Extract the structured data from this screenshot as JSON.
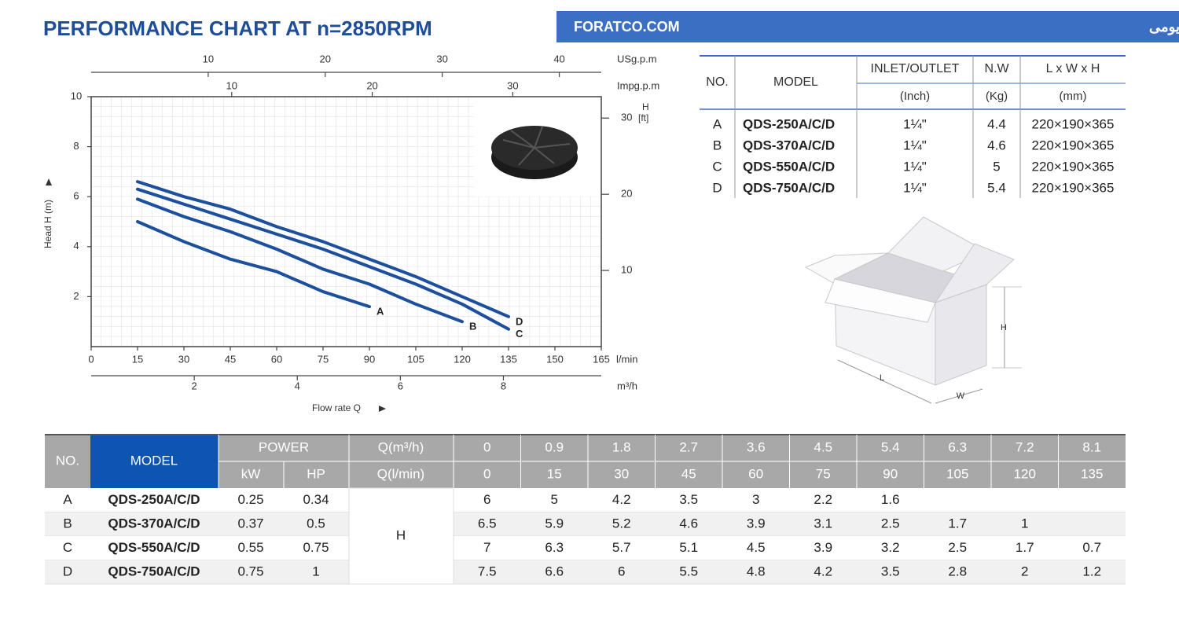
{
  "header": {
    "title": "PERFORMANCE CHART AT n=2850RPM",
    "banner_site": "FORATCO.COM",
    "banner_text": "شرکت فرات واردکننده انحصاری و مرکز پخش انواع پمپ‌های یومی"
  },
  "chart_data": {
    "type": "line",
    "y_label": "Head H (m)",
    "x_label": "Flow rate Q",
    "x_unit": "l/min",
    "x": [
      15,
      30,
      45,
      60,
      75,
      90,
      105,
      120,
      135
    ],
    "xlim": [
      0,
      165
    ],
    "xticks": [
      0,
      15,
      30,
      45,
      60,
      75,
      90,
      105,
      120,
      135,
      150,
      165
    ],
    "ylim": [
      0,
      10
    ],
    "yticks": [
      2,
      4,
      6,
      8,
      10
    ],
    "y2_label": "H",
    "y2_unit": "[ft]",
    "y2lim": [
      0,
      32.81
    ],
    "y2ticks": [
      10,
      20,
      30
    ],
    "top_axes": [
      {
        "label": "USg.p.m",
        "lim": [
          0,
          43.59
        ],
        "ticks": [
          10,
          20,
          30,
          40
        ]
      },
      {
        "label": "Impg.p.m",
        "lim": [
          0,
          36.3
        ],
        "ticks": [
          10,
          20,
          30
        ]
      }
    ],
    "bottom_axis2": {
      "label": "m³/h",
      "lim": [
        0,
        9.9
      ],
      "ticks": [
        2,
        4,
        6,
        8
      ]
    },
    "series": [
      {
        "name": "A",
        "color": "#1c4f9d",
        "values": [
          5,
          4.2,
          3.5,
          3,
          2.2,
          1.6,
          null,
          null,
          null
        ]
      },
      {
        "name": "B",
        "color": "#1c4f9d",
        "values": [
          5.9,
          5.2,
          4.6,
          3.9,
          3.1,
          2.5,
          1.7,
          1,
          null
        ]
      },
      {
        "name": "C",
        "color": "#1c4f9d",
        "values": [
          6.3,
          5.7,
          5.1,
          4.5,
          3.9,
          3.2,
          2.5,
          1.7,
          0.7
        ]
      },
      {
        "name": "D",
        "color": "#1c4f9d",
        "values": [
          6.6,
          6,
          5.5,
          4.8,
          4.2,
          3.5,
          2.8,
          2,
          1.2
        ]
      }
    ]
  },
  "spec_table": {
    "headers": [
      "NO.",
      "MODEL",
      "INLET/OUTLET",
      "N.W",
      "L x W x H"
    ],
    "units": [
      "(Inch)",
      "(Kg)",
      "(mm)"
    ],
    "rows": [
      [
        "A",
        "QDS-250A/C/D",
        "1¼\"",
        4.4,
        "220×190×365"
      ],
      [
        "B",
        "QDS-370A/C/D",
        "1¼\"",
        4.6,
        "220×190×365"
      ],
      [
        "C",
        "QDS-550A/C/D",
        "1¼\"",
        5,
        "220×190×365"
      ],
      [
        "D",
        "QDS-750A/C/D",
        "1¼\"",
        5.4,
        "220×190×365"
      ]
    ]
  },
  "box_labels": {
    "height": "H",
    "length": "L",
    "width": "W"
  },
  "performance_table": {
    "no_header": "NO.",
    "model_header": "MODEL",
    "power_header": "POWER",
    "power_units": [
      "kW",
      "HP"
    ],
    "flow_m3h_label": "Q(m³/h)",
    "flow_m3h": [
      0,
      0.9,
      1.8,
      2.7,
      3.6,
      4.5,
      5.4,
      6.3,
      7.2,
      8.1
    ],
    "flow_lmin_label": "Q(l/min)",
    "flow_lmin": [
      0,
      15,
      30,
      45,
      60,
      75,
      90,
      105,
      120,
      135
    ],
    "head_label": "H",
    "rows": [
      {
        "no": "A",
        "model": "QDS-250A/C/D",
        "kw": 0.25,
        "hp": 0.34,
        "head": [
          6,
          5,
          4.2,
          3.5,
          3,
          2.2,
          1.6,
          null,
          null,
          null
        ]
      },
      {
        "no": "B",
        "model": "QDS-370A/C/D",
        "kw": 0.37,
        "hp": 0.5,
        "head": [
          6.5,
          5.9,
          5.2,
          4.6,
          3.9,
          3.1,
          2.5,
          1.7,
          1,
          null
        ]
      },
      {
        "no": "C",
        "model": "QDS-550A/C/D",
        "kw": 0.55,
        "hp": 0.75,
        "head": [
          7,
          6.3,
          5.7,
          5.1,
          4.5,
          3.9,
          3.2,
          2.5,
          1.7,
          0.7
        ]
      },
      {
        "no": "D",
        "model": "QDS-750A/C/D",
        "kw": 0.75,
        "hp": 1,
        "head": [
          7.5,
          6.6,
          6,
          5.5,
          4.8,
          4.2,
          3.5,
          2.8,
          2,
          1.2
        ]
      }
    ]
  }
}
